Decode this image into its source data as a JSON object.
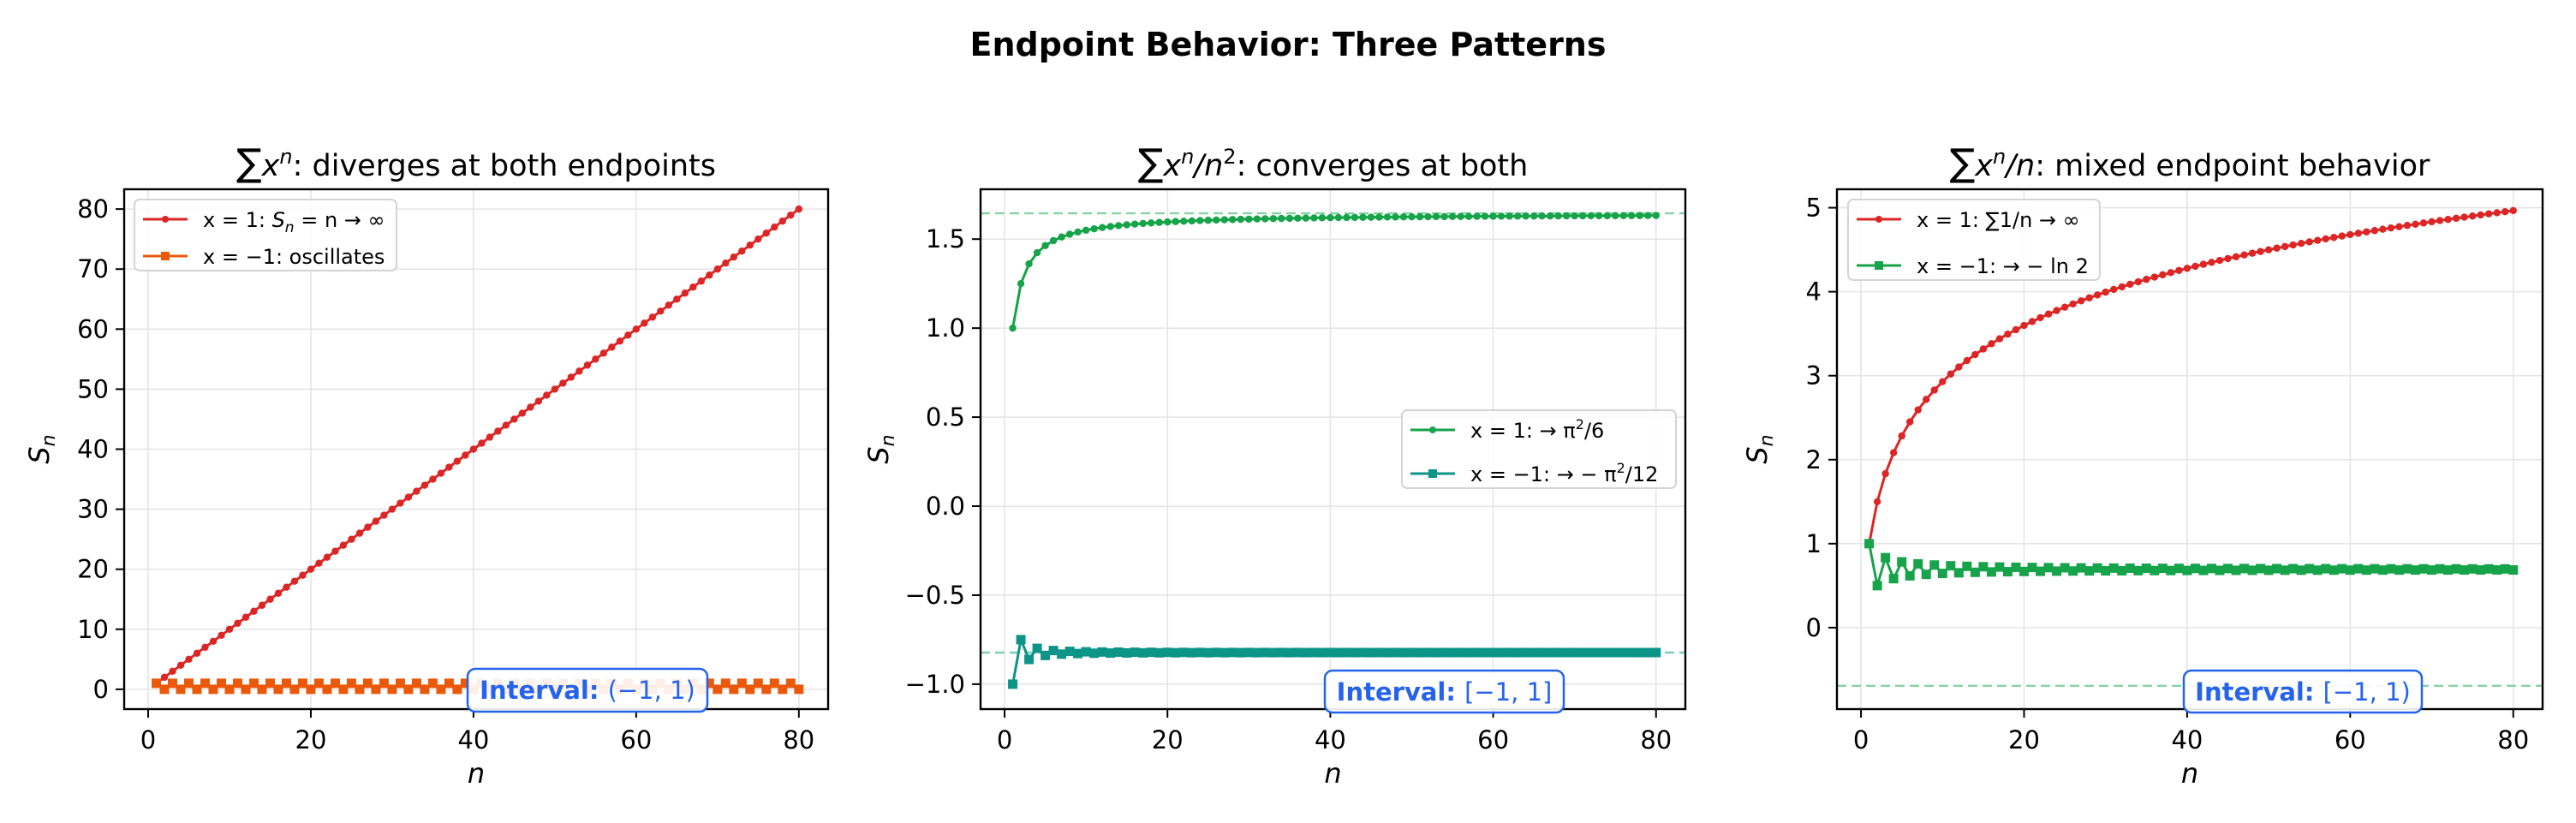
{
  "figure": {
    "suptitle": "Endpoint Behavior: Three Patterns"
  },
  "chart_data": [
    {
      "type": "line",
      "title": "∑xⁿ: diverges at both endpoints",
      "title_parts": {
        "sum": "∑",
        "var": "x",
        "sup": "n",
        "rest": ": diverges at both endpoints"
      },
      "xlabel": "n",
      "ylabel": "S_n",
      "xlim": [
        -2.95,
        83.6
      ],
      "ylim": [
        -3.3,
        83.3
      ],
      "xticks": [
        0,
        20,
        40,
        60,
        80
      ],
      "yticks": [
        0,
        10,
        20,
        30,
        40,
        50,
        60,
        70,
        80
      ],
      "ytick_labels": [
        "0",
        "10",
        "20",
        "30",
        "40",
        "50",
        "60",
        "70",
        "80"
      ],
      "grid": true,
      "legend_position": "upper left",
      "series": [
        {
          "name": "x = 1: S_n = n → ∞",
          "legend": {
            "pre": "x = 1: ",
            "S": "S",
            "sub": "n",
            "post": " = n → ∞"
          },
          "color": "#dc2626",
          "marker": "circle",
          "formula": "n",
          "n_range": [
            1,
            80
          ]
        },
        {
          "name": "x = −1: oscillates",
          "legend": {
            "pre": "x = −1: oscillates"
          },
          "color": "#ea580c",
          "marker": "square",
          "formula": "alt_1_0",
          "n_range": [
            1,
            80
          ]
        }
      ],
      "reference_lines": [],
      "annotation": {
        "bold": "Interval:",
        "value": "(−1, 1)",
        "color": "#2563eb"
      }
    },
    {
      "type": "line",
      "title": "∑xⁿ/n²: converges at both",
      "title_parts": {
        "sum": "∑",
        "var": "x",
        "sup": "n",
        "mid": "/n",
        "sup2": "2",
        "rest": ": converges at both"
      },
      "xlabel": "n",
      "ylabel": "S_n",
      "xlim": [
        -2.95,
        83.6
      ],
      "ylim": [
        -1.14,
        1.78
      ],
      "xticks": [
        0,
        20,
        40,
        60,
        80
      ],
      "yticks": [
        -1.0,
        -0.5,
        0.0,
        0.5,
        1.0,
        1.5
      ],
      "ytick_labels": [
        "−1.0",
        "−0.5",
        "0.0",
        "0.5",
        "1.0",
        "1.5"
      ],
      "grid": true,
      "legend_position": "center right",
      "series": [
        {
          "name": "x = 1: → π²/6",
          "legend": {
            "pre": "x = 1:  → π",
            "sup": "2",
            "post": "/6"
          },
          "color": "#16a34a",
          "marker": "circle",
          "formula": "sum_1_over_n2",
          "n_range": [
            1,
            80
          ]
        },
        {
          "name": "x = −1: → −π²/12",
          "legend": {
            "pre": "x = −1:  → − π",
            "sup": "2",
            "post": "/12"
          },
          "color": "#0d9488",
          "marker": "square",
          "formula": "sum_alt_1_over_n2",
          "n_range": [
            1,
            80
          ]
        }
      ],
      "reference_lines": [
        {
          "y": 1.6449,
          "color": "#86d4a2",
          "style": "dashed"
        },
        {
          "y": -0.8225,
          "color": "#7fcdbd",
          "style": "dashed"
        }
      ],
      "annotation": {
        "bold": "Interval:",
        "value": "[−1, 1]",
        "color": "#2563eb"
      }
    },
    {
      "type": "line",
      "title": "∑xⁿ/n: mixed endpoint behavior",
      "title_parts": {
        "sum": "∑",
        "var": "x",
        "sup": "n",
        "mid": "/n",
        "rest": ": mixed endpoint behavior"
      },
      "xlabel": "n",
      "ylabel": "S_n",
      "xlim": [
        -2.95,
        83.6
      ],
      "ylim": [
        -0.97,
        5.22
      ],
      "xticks": [
        0,
        20,
        40,
        60,
        80
      ],
      "yticks": [
        0,
        1,
        2,
        3,
        4,
        5
      ],
      "ytick_labels": [
        "0",
        "1",
        "2",
        "3",
        "4",
        "5"
      ],
      "grid": true,
      "legend_position": "upper left",
      "series": [
        {
          "name": "x = 1: ∑1/n → ∞",
          "legend": {
            "pre": "x = 1: ∑1/n → ∞"
          },
          "color": "#dc2626",
          "marker": "circle",
          "formula": "harmonic",
          "n_range": [
            1,
            80
          ]
        },
        {
          "name": "x = −1: → − ln 2",
          "legend": {
            "pre": "x = −1:  → − ln 2"
          },
          "color": "#16a34a",
          "marker": "square",
          "formula": "alt_harmonic",
          "n_range": [
            1,
            80
          ]
        }
      ],
      "reference_lines": [
        {
          "y": -0.6931,
          "color": "#86d4a2",
          "style": "dashed"
        }
      ],
      "annotation": {
        "bold": "Interval:",
        "value": "[−1, 1)",
        "color": "#2563eb"
      }
    }
  ]
}
